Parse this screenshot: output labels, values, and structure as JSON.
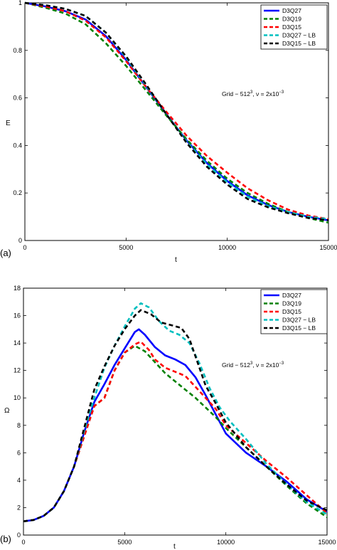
{
  "chart_data": [
    {
      "panel_label": "(a)",
      "type": "line",
      "xlabel": "t",
      "ylabel": "E",
      "xlim": [
        0,
        15000
      ],
      "ylim": [
        0,
        1
      ],
      "xticks": [
        0,
        5000,
        10000,
        15000
      ],
      "xtick_labels": [
        "0",
        "5000",
        "10000",
        "15000"
      ],
      "yticks": [
        0,
        0.2,
        0.4,
        0.6,
        0.8,
        1
      ],
      "ytick_labels": [
        "0",
        "0.2",
        "0.4",
        "0.6",
        "0.8",
        "1"
      ],
      "annotation": {
        "text": "Grid − 512",
        "sup1": "3",
        "mid": ", ν = 2x10",
        "sup2": "−3"
      },
      "legend_position": "top-right",
      "series": [
        {
          "name": "D3Q27",
          "color": "#0000ff",
          "dash": "solid",
          "x": [
            0,
            1000,
            2000,
            3000,
            4000,
            5000,
            6000,
            7000,
            8000,
            9000,
            10000,
            11000,
            12000,
            13000,
            14000,
            15000
          ],
          "y": [
            1.0,
            0.985,
            0.965,
            0.93,
            0.86,
            0.76,
            0.645,
            0.53,
            0.42,
            0.325,
            0.25,
            0.19,
            0.15,
            0.12,
            0.1,
            0.085
          ]
        },
        {
          "name": "D3Q19",
          "color": "#008000",
          "dash": "dashed",
          "x": [
            0,
            1000,
            2000,
            3000,
            4000,
            5000,
            6000,
            7000,
            8000,
            9000,
            10000,
            11000,
            12000,
            13000,
            14000,
            15000
          ],
          "y": [
            1.0,
            0.98,
            0.955,
            0.91,
            0.83,
            0.735,
            0.63,
            0.525,
            0.425,
            0.335,
            0.26,
            0.2,
            0.155,
            0.12,
            0.095,
            0.075
          ]
        },
        {
          "name": "D3Q15",
          "color": "#ff0000",
          "dash": "dashed",
          "x": [
            0,
            1000,
            2000,
            3000,
            4000,
            5000,
            6000,
            7000,
            8000,
            9000,
            10000,
            11000,
            12000,
            13000,
            14000,
            15000
          ],
          "y": [
            1.0,
            0.985,
            0.965,
            0.925,
            0.855,
            0.755,
            0.645,
            0.54,
            0.44,
            0.355,
            0.285,
            0.22,
            0.17,
            0.13,
            0.105,
            0.09
          ]
        },
        {
          "name": "D3Q27 − LB",
          "color": "#00bfbf",
          "dash": "dashed",
          "x": [
            0,
            1000,
            2000,
            3000,
            4000,
            5000,
            6000,
            7000,
            8000,
            9000,
            10000,
            11000,
            12000,
            13000,
            14000,
            15000
          ],
          "y": [
            1.0,
            0.99,
            0.975,
            0.945,
            0.875,
            0.77,
            0.65,
            0.53,
            0.415,
            0.32,
            0.245,
            0.185,
            0.145,
            0.12,
            0.1,
            0.09
          ]
        },
        {
          "name": "D3Q15 − LB",
          "color": "#000000",
          "dash": "dashed",
          "x": [
            0,
            1000,
            2000,
            3000,
            4000,
            5000,
            6000,
            7000,
            8000,
            9000,
            10000,
            11000,
            12000,
            13000,
            14000,
            15000
          ],
          "y": [
            1.0,
            0.99,
            0.975,
            0.945,
            0.875,
            0.775,
            0.655,
            0.53,
            0.41,
            0.31,
            0.235,
            0.175,
            0.14,
            0.115,
            0.095,
            0.085
          ]
        }
      ]
    },
    {
      "panel_label": "(b)",
      "type": "line",
      "xlabel": "t",
      "ylabel": "Ω",
      "xlim": [
        0,
        15000
      ],
      "ylim": [
        0,
        18
      ],
      "xticks": [
        0,
        5000,
        10000,
        15000
      ],
      "xtick_labels": [
        "0",
        "5000",
        "10000",
        "15000"
      ],
      "yticks": [
        0,
        2,
        4,
        6,
        8,
        10,
        12,
        14,
        16,
        18
      ],
      "ytick_labels": [
        "0",
        "2",
        "4",
        "6",
        "8",
        "10",
        "12",
        "14",
        "16",
        "18"
      ],
      "annotation": {
        "text": "Grid − 512",
        "sup1": "3",
        "mid": ", ν = 2x10",
        "sup2": "−3"
      },
      "legend_position": "top-right",
      "series": [
        {
          "name": "D3Q27",
          "color": "#0000ff",
          "dash": "solid",
          "x": [
            0,
            500,
            1000,
            1500,
            2000,
            2500,
            3000,
            3500,
            4000,
            4500,
            5000,
            5500,
            5700,
            6000,
            6500,
            7000,
            7500,
            8000,
            8500,
            9000,
            9500,
            10000,
            11000,
            12000,
            13000,
            14000,
            15000
          ],
          "y": [
            1.0,
            1.1,
            1.4,
            2.0,
            3.2,
            5.0,
            7.5,
            9.7,
            11.0,
            12.4,
            13.6,
            14.8,
            15.0,
            14.6,
            13.7,
            13.1,
            12.8,
            12.4,
            11.5,
            10.2,
            8.8,
            7.4,
            6.0,
            5.0,
            3.9,
            2.6,
            1.7
          ]
        },
        {
          "name": "D3Q19",
          "color": "#008000",
          "dash": "dashed",
          "x": [
            0,
            500,
            1000,
            1500,
            2000,
            2500,
            3000,
            3500,
            4000,
            4500,
            5000,
            5500,
            6000,
            6500,
            7000,
            7500,
            8000,
            8500,
            9000,
            9500,
            10000,
            11000,
            12000,
            13000,
            14000,
            15000
          ],
          "y": [
            1.0,
            1.1,
            1.4,
            2.0,
            3.2,
            5.0,
            7.2,
            9.4,
            10.0,
            12.0,
            13.3,
            13.8,
            13.4,
            12.6,
            11.8,
            11.2,
            10.6,
            10.0,
            9.3,
            8.6,
            7.8,
            6.4,
            5.0,
            3.6,
            2.3,
            1.3
          ]
        },
        {
          "name": "D3Q15",
          "color": "#ff0000",
          "dash": "dashed",
          "x": [
            0,
            500,
            1000,
            1500,
            2000,
            2500,
            3000,
            3500,
            4000,
            4500,
            5000,
            5500,
            5800,
            6200,
            6500,
            7000,
            7500,
            8000,
            8500,
            9000,
            9500,
            10000,
            11000,
            12000,
            13000,
            14000,
            15000
          ],
          "y": [
            1.0,
            1.1,
            1.4,
            2.0,
            3.2,
            5.0,
            7.2,
            9.4,
            10.0,
            12.0,
            13.3,
            13.9,
            14.1,
            13.5,
            12.8,
            12.2,
            11.9,
            11.6,
            10.8,
            10.0,
            9.2,
            8.0,
            6.7,
            5.4,
            4.2,
            2.9,
            1.6
          ]
        },
        {
          "name": "D3Q27 − LB",
          "color": "#00bfbf",
          "dash": "dashed",
          "x": [
            0,
            500,
            1000,
            1500,
            2000,
            2500,
            3000,
            3500,
            4000,
            4500,
            5000,
            5500,
            5800,
            6200,
            6700,
            7200,
            7700,
            8200,
            8700,
            9200,
            9700,
            10200,
            11000,
            12000,
            13000,
            14000,
            15000
          ],
          "y": [
            1.0,
            1.1,
            1.4,
            2.0,
            3.2,
            5.0,
            7.6,
            10.0,
            12.2,
            13.8,
            15.2,
            16.5,
            16.9,
            16.6,
            15.6,
            14.9,
            14.6,
            14.0,
            12.5,
            10.7,
            9.3,
            8.3,
            7.0,
            5.2,
            3.7,
            2.4,
            1.5
          ]
        },
        {
          "name": "D3Q15 − LB",
          "color": "#000000",
          "dash": "dashed",
          "x": [
            0,
            500,
            1000,
            1500,
            2000,
            2500,
            3000,
            3500,
            4000,
            4500,
            5000,
            5500,
            5800,
            6300,
            6800,
            7300,
            7800,
            8200,
            8600,
            9000,
            9500,
            10000,
            11000,
            12000,
            13000,
            14000,
            15000
          ],
          "y": [
            1.0,
            1.1,
            1.4,
            2.0,
            3.2,
            5.0,
            7.8,
            10.6,
            12.3,
            13.8,
            15.0,
            16.0,
            16.4,
            16.1,
            15.5,
            15.3,
            15.1,
            14.3,
            12.6,
            10.9,
            9.6,
            8.2,
            6.4,
            5.0,
            3.7,
            2.5,
            1.8
          ]
        }
      ]
    }
  ]
}
